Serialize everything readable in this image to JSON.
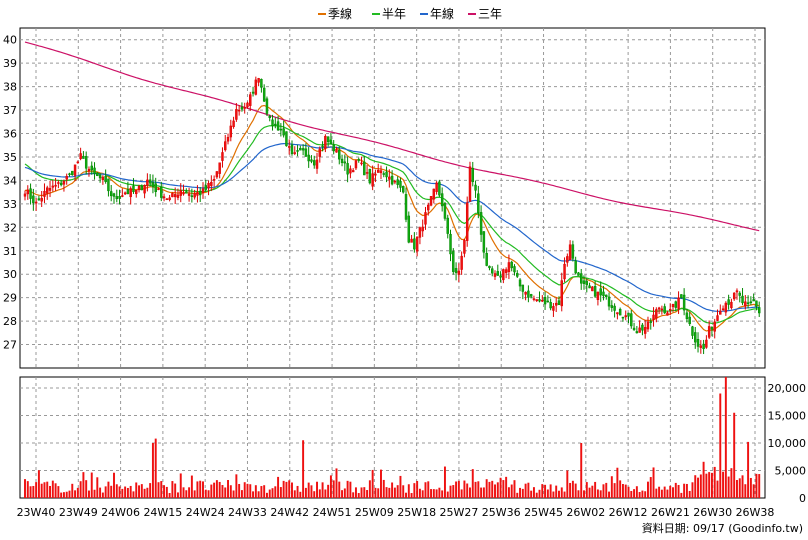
{
  "chart_data": {
    "type": "candlestick_with_volume",
    "legend": [
      {
        "name": "季線",
        "color": "#e07000"
      },
      {
        "name": "半年",
        "color": "#22bb22"
      },
      {
        "name": "年線",
        "color": "#2266cc"
      },
      {
        "name": "三年",
        "color": "#cc1166"
      }
    ],
    "price_axis": {
      "ylim": [
        26,
        40.5
      ],
      "ticks": [
        27,
        28,
        29,
        30,
        31,
        32,
        33,
        34,
        35,
        36,
        37,
        38,
        39,
        40
      ]
    },
    "volume_axis": {
      "ylim": [
        0,
        22000
      ],
      "ticks": [
        20000,
        15000,
        10000,
        5000,
        0
      ],
      "tick_labels": [
        "20,000",
        "15,000",
        "10,000",
        "5,000",
        "0"
      ]
    },
    "x_tick_labels": [
      "23W40",
      "23W49",
      "24W06",
      "24W15",
      "24W24",
      "24W33",
      "24W42",
      "24W51",
      "25W09",
      "25W18",
      "25W27",
      "25W36",
      "25W45",
      "26W02",
      "26W12",
      "26W21",
      "26W30",
      "26W38"
    ],
    "close_anchors": [
      [
        0,
        33.6
      ],
      [
        4,
        33.0
      ],
      [
        8,
        33.6
      ],
      [
        12,
        33.8
      ],
      [
        16,
        34.2
      ],
      [
        20,
        35.0
      ],
      [
        24,
        34.3
      ],
      [
        28,
        34.0
      ],
      [
        32,
        33.2
      ],
      [
        36,
        33.5
      ],
      [
        40,
        33.5
      ],
      [
        44,
        34.0
      ],
      [
        48,
        33.5
      ],
      [
        52,
        33.2
      ],
      [
        56,
        33.6
      ],
      [
        60,
        33.4
      ],
      [
        64,
        33.5
      ],
      [
        68,
        34.0
      ],
      [
        72,
        35.5
      ],
      [
        76,
        37.0
      ],
      [
        80,
        37.2
      ],
      [
        84,
        38.5
      ],
      [
        86,
        37.5
      ],
      [
        88,
        36.5
      ],
      [
        92,
        36.2
      ],
      [
        96,
        35.0
      ],
      [
        100,
        35.2
      ],
      [
        104,
        34.8
      ],
      [
        108,
        35.8
      ],
      [
        112,
        35.2
      ],
      [
        116,
        34.4
      ],
      [
        120,
        34.8
      ],
      [
        124,
        34.0
      ],
      [
        128,
        34.5
      ],
      [
        132,
        34.0
      ],
      [
        136,
        33.5
      ],
      [
        138,
        31.5
      ],
      [
        140,
        31.2
      ],
      [
        144,
        32.5
      ],
      [
        148,
        33.8
      ],
      [
        150,
        33.0
      ],
      [
        154,
        30.2
      ],
      [
        156,
        30.0
      ],
      [
        158,
        31.5
      ],
      [
        160,
        34.5
      ],
      [
        162,
        33.5
      ],
      [
        164,
        31.8
      ],
      [
        166,
        30.2
      ],
      [
        170,
        29.8
      ],
      [
        174,
        30.5
      ],
      [
        178,
        29.5
      ],
      [
        182,
        29.0
      ],
      [
        186,
        28.8
      ],
      [
        190,
        28.7
      ],
      [
        192,
        28.8
      ],
      [
        194,
        30.5
      ],
      [
        196,
        31.2
      ],
      [
        198,
        30.2
      ],
      [
        200,
        29.5
      ],
      [
        204,
        29.3
      ],
      [
        208,
        29.0
      ],
      [
        212,
        28.6
      ],
      [
        216,
        28.2
      ],
      [
        220,
        27.6
      ],
      [
        224,
        27.8
      ],
      [
        228,
        28.6
      ],
      [
        232,
        28.4
      ],
      [
        236,
        29.0
      ],
      [
        238,
        28.2
      ],
      [
        240,
        27.5
      ],
      [
        242,
        27.0
      ],
      [
        244,
        26.8
      ],
      [
        246,
        27.6
      ],
      [
        248,
        28.0
      ],
      [
        250,
        28.6
      ],
      [
        252,
        28.8
      ],
      [
        254,
        28.9
      ],
      [
        256,
        29.2
      ],
      [
        258,
        28.8
      ],
      [
        260,
        28.6
      ],
      [
        262,
        28.8
      ],
      [
        264,
        28.4
      ]
    ],
    "volume_spikes": [
      [
        46,
        10000
      ],
      [
        47,
        10800
      ],
      [
        100,
        10500
      ],
      [
        155,
        3000
      ],
      [
        250,
        19000
      ],
      [
        252,
        22000
      ],
      [
        255,
        15500
      ],
      [
        260,
        10200
      ],
      [
        200,
        10000
      ],
      [
        195,
        5000
      ]
    ],
    "ma_seed": {
      "quarter": 33.6,
      "half": 34.8,
      "year": 34.6
    },
    "three_year_line": {
      "start": 39.9,
      "end": 31.9
    },
    "footer": "資料日期: 09/17  (Goodinfo.tw)"
  }
}
